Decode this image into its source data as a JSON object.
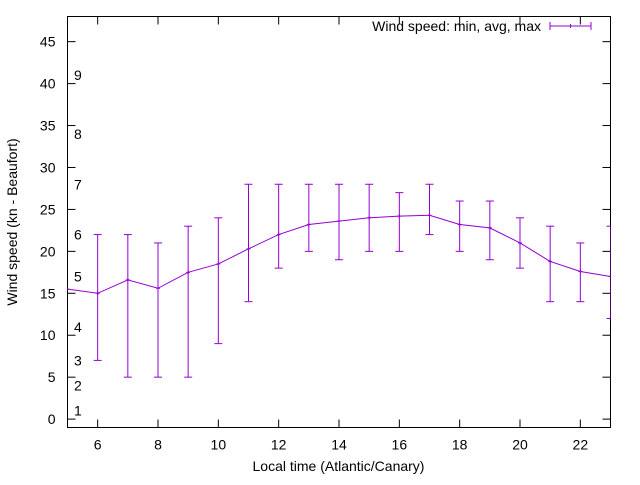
{
  "chart_data": {
    "type": "line",
    "title": "",
    "xlabel": "Local time (Atlantic/Canary)",
    "ylabel": "Wind speed (kn - Beaufort)",
    "xlim": [
      5,
      23
    ],
    "ylim": [
      -1,
      48
    ],
    "x_ticks": [
      6,
      8,
      10,
      12,
      14,
      16,
      18,
      20,
      22
    ],
    "y_ticks": [
      0,
      5,
      10,
      15,
      20,
      25,
      30,
      35,
      40,
      45
    ],
    "grid": false,
    "legend": {
      "position": "top-right",
      "entries": [
        "Wind speed: min, avg, max"
      ]
    },
    "beaufort_labels": [
      {
        "label": "1",
        "y": 1
      },
      {
        "label": "2",
        "y": 4
      },
      {
        "label": "3",
        "y": 7
      },
      {
        "label": "4",
        "y": 11
      },
      {
        "label": "5",
        "y": 17
      },
      {
        "label": "6",
        "y": 22
      },
      {
        "label": "7",
        "y": 28
      },
      {
        "label": "8",
        "y": 34
      },
      {
        "label": "9",
        "y": 41
      }
    ],
    "series": [
      {
        "name": "Wind speed: min, avg, max",
        "color": "#9400d3",
        "x": [
          5,
          6,
          7,
          8,
          9,
          10,
          11,
          12,
          13,
          14,
          15,
          16,
          17,
          18,
          19,
          20,
          21,
          22,
          23
        ],
        "avg": [
          15.5,
          15,
          16.6,
          15.6,
          17.5,
          18.5,
          20.3,
          22,
          23.2,
          23.6,
          24,
          24.2,
          24.3,
          23.2,
          22.8,
          21,
          18.8,
          17.6,
          17
        ],
        "min": [
          null,
          7,
          5,
          5,
          5,
          9,
          14,
          18,
          20,
          19,
          20,
          20,
          22,
          20,
          19,
          18,
          14,
          14,
          12
        ],
        "max": [
          null,
          22,
          22,
          21,
          23,
          24,
          28,
          28,
          28,
          28,
          28,
          27,
          28,
          26,
          26,
          24,
          23,
          21,
          23
        ]
      }
    ]
  }
}
